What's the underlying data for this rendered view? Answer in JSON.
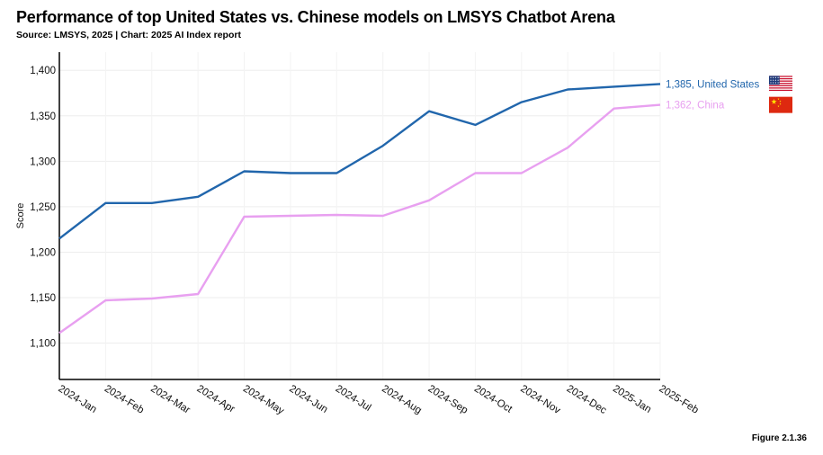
{
  "title": "Performance of top United States vs. Chinese models on LMSYS Chatbot Arena",
  "source": "Source: LMSYS, 2025 | Chart: 2025 AI Index report",
  "figure_label": "Figure 2.1.36",
  "chart_data": {
    "type": "line",
    "title": "Performance of top United States vs. Chinese models on LMSYS Chatbot Arena",
    "ylabel": "Score",
    "xlabel": "",
    "ylim": [
      1060,
      1420
    ],
    "yticks": [
      1100,
      1150,
      1200,
      1250,
      1300,
      1350,
      1400
    ],
    "ytick_labels": [
      "1,100",
      "1,150",
      "1,200",
      "1,250",
      "1,300",
      "1,350",
      "1,400"
    ],
    "grid": true,
    "categories": [
      "2024-Jan",
      "2024-Feb",
      "2024-Mar",
      "2024-Apr",
      "2024-May",
      "2024-Jun",
      "2024-Jul",
      "2024-Aug",
      "2024-Sep",
      "2024-Oct",
      "2024-Nov",
      "2024-Dec",
      "2025-Jan",
      "2025-Feb"
    ],
    "series": [
      {
        "name": "United States",
        "color": "#2166ac",
        "end_label": "1,385, United States",
        "flag_icon": "us-flag-icon",
        "values": [
          1215,
          1254,
          1254,
          1261,
          1289,
          1287,
          1287,
          1317,
          1355,
          1340,
          1365,
          1379,
          1382,
          1385
        ]
      },
      {
        "name": "China",
        "color": "#e8a0f0",
        "end_label": "1,362, China",
        "flag_icon": "china-flag-icon",
        "values": [
          1111,
          1147,
          1149,
          1154,
          1239,
          1240,
          1241,
          1240,
          1257,
          1287,
          1287,
          1315,
          1358,
          1362
        ]
      }
    ]
  }
}
